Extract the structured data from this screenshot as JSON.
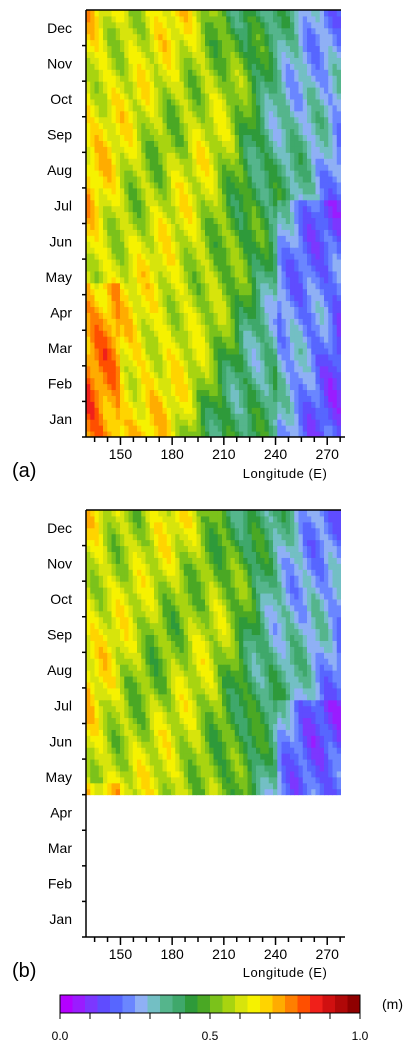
{
  "chart_data": [
    {
      "panel_label": "(a)",
      "type": "heatmap",
      "x_field": "Longitude",
      "y_field": "Month",
      "xlabel": "Longitude (E)",
      "x_range": [
        130,
        278
      ],
      "x_ticks": [
        150,
        180,
        210,
        240,
        270
      ],
      "y_ticks": [
        "Jan",
        "Feb",
        "Mar",
        "Apr",
        "May",
        "Jun",
        "Jul",
        "Aug",
        "Sep",
        "Oct",
        "Nov",
        "Dec"
      ],
      "months_with_data": [
        "Jan",
        "Feb",
        "Mar",
        "Apr",
        "May",
        "Jun",
        "Jul",
        "Aug",
        "Sep",
        "Oct",
        "Nov",
        "Dec"
      ],
      "variable_unit": "m"
    },
    {
      "panel_label": "(b)",
      "type": "heatmap",
      "x_field": "Longitude",
      "y_field": "Month",
      "xlabel": "Longitude (E)",
      "x_range": [
        130,
        278
      ],
      "x_ticks": [
        150,
        180,
        210,
        240,
        270
      ],
      "y_ticks": [
        "Jan",
        "Feb",
        "Mar",
        "Apr",
        "May",
        "Jun",
        "Jul",
        "Aug",
        "Sep",
        "Oct",
        "Nov",
        "Dec"
      ],
      "months_with_data": [
        "May",
        "Jun",
        "Jul",
        "Aug",
        "Sep",
        "Oct",
        "Nov",
        "Dec"
      ],
      "variable_unit": "m"
    }
  ],
  "colorbar": {
    "unit_label": "(m)",
    "min": 0.0,
    "max": 1.0,
    "tick_labels": [
      "0.0",
      "0.5",
      "1.0"
    ],
    "colors": [
      "#b400ff",
      "#9a1cff",
      "#7c37ff",
      "#5f4cff",
      "#5766ff",
      "#6a86ff",
      "#8fb0f5",
      "#73bfc4",
      "#55b58c",
      "#3fa86b",
      "#2e9a3a",
      "#4aa824",
      "#7bc21b",
      "#a8d410",
      "#d7e40c",
      "#f6f200",
      "#ffd400",
      "#ffac00",
      "#ff7f00",
      "#ff4f00",
      "#f0201a",
      "#d01010",
      "#b00808",
      "#8f0000"
    ]
  }
}
